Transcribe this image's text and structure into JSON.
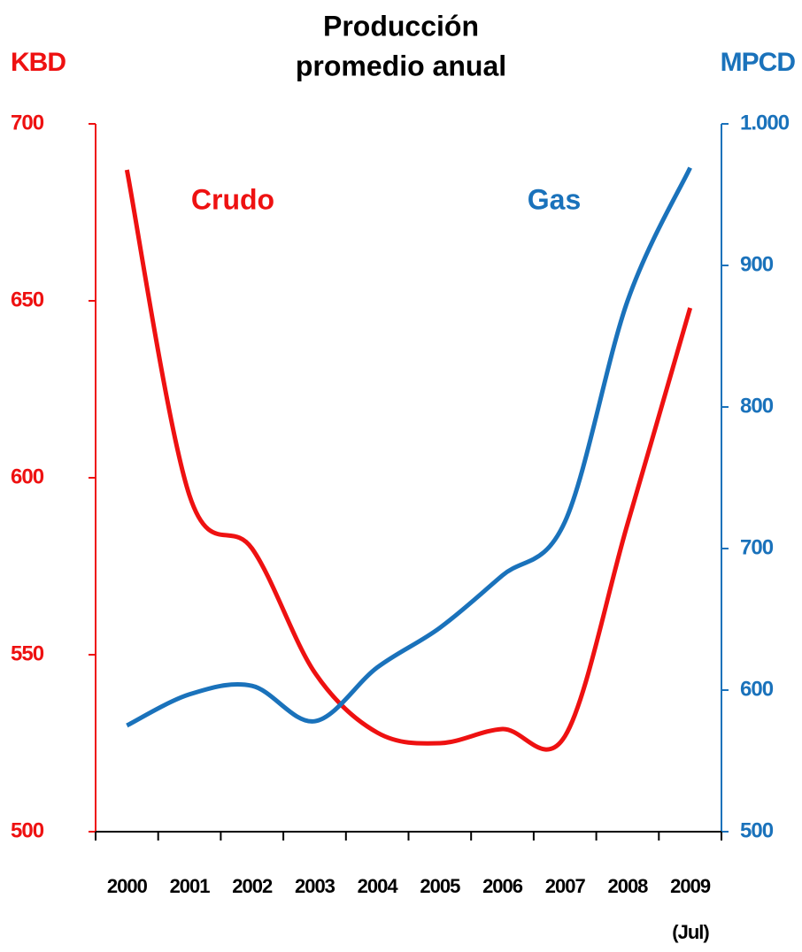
{
  "chart_data": {
    "type": "line",
    "title": [
      "Producción",
      "promedio anual"
    ],
    "y_label": "KBD",
    "y2_label": "MPCD",
    "categories": [
      "2000",
      "2001",
      "2002",
      "2003",
      "2004",
      "2005",
      "2006",
      "2007",
      "2008",
      "2009"
    ],
    "category_note": "(Jul)",
    "series": [
      {
        "name": "Crudo",
        "color": "#ee1111",
        "values": [
          687,
          595,
          580,
          545,
          528,
          525,
          529,
          527,
          587,
          648
        ]
      },
      {
        "name": "Gas",
        "color": "#1a72bb",
        "axis": "y2",
        "values": [
          575,
          597,
          603,
          578,
          616,
          644,
          681,
          719,
          875,
          969
        ]
      }
    ],
    "ylim": [
      500,
      700
    ],
    "yticks": [
      500,
      550,
      600,
      650,
      700
    ],
    "y2lim": [
      500,
      1000
    ],
    "y2ticks": [
      500,
      600,
      700,
      800,
      900,
      {
        "value": 1000,
        "label": "1.000"
      }
    ],
    "smooth": true
  }
}
